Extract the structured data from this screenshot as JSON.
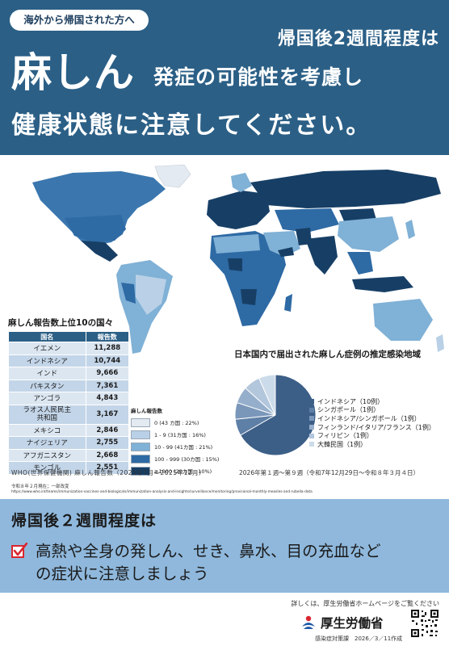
{
  "header": {
    "pill": "海外から帰国された方へ",
    "line1": "帰国後2週間程度は",
    "main": "麻しん",
    "sub": "発症の可能性を考慮し",
    "line3": "健康状態に注意してください。"
  },
  "top10": {
    "title": "麻しん報告数上位10の国々",
    "col_country": "国名",
    "col_count": "報告数",
    "rows": [
      {
        "country": "イエメン",
        "count": "11,288"
      },
      {
        "country": "インドネシア",
        "count": "10,744"
      },
      {
        "country": "インド",
        "count": "9,666"
      },
      {
        "country": "パキスタン",
        "count": "7,361"
      },
      {
        "country": "アンゴラ",
        "count": "4,843"
      },
      {
        "country_l1": "ラオス人民民主",
        "country_l2": "共和国",
        "count": "3,167"
      },
      {
        "country": "メキシコ",
        "count": "2,846"
      },
      {
        "country": "ナイジェリア",
        "count": "2,755"
      },
      {
        "country": "アフガニスタン",
        "count": "2,668"
      },
      {
        "country": "モンゴル",
        "count": "2,551"
      }
    ]
  },
  "legend": {
    "title": "麻しん報告数",
    "items": [
      {
        "label": "0 (43 カ国 : 22%)",
        "color": "#e4eaf1"
      },
      {
        "label": "1 - 9 (31カ国 : 16%)",
        "color": "#b9d0e6"
      },
      {
        "label": "10 - 99 (41カ国 : 21%)",
        "color": "#80b1d6"
      },
      {
        "label": "100 - 999 (30カ国 : 15%)",
        "color": "#2e6aa4"
      },
      {
        "label": "≧1000 (20カ国 : 10%)",
        "color": "#173f66"
      }
    ]
  },
  "japan": {
    "title": "日本国内で届出された麻しん症例の推定感染地域",
    "items": [
      {
        "label": "インドネシア（10例）",
        "cases": 10,
        "color": "#3c5f88"
      },
      {
        "label": "シンガポール（1例）",
        "cases": 1,
        "color": "#5e7fa6"
      },
      {
        "label": "インドネシア/シンガポール（1例）",
        "cases": 1,
        "color": "#7a97ba"
      },
      {
        "label": "フィンランド/イタリア/フランス（1例）",
        "cases": 1,
        "color": "#95aecb"
      },
      {
        "label": "フィリピン（1例）",
        "cases": 1,
        "color": "#b2c6dc"
      },
      {
        "label": "大韓民国（1例）",
        "cases": 1,
        "color": "#ccdbe9"
      }
    ]
  },
  "sources": {
    "who": "WHO(世界保健機関) 麻しん報告数（2025年7月～2025年12月）",
    "japan_period": "2026年第１週～第９週（令和7年12月29日～令和８年３月４日）",
    "note": "令和８年２月現在；一部改変",
    "url": "https://www.who.int/teams/immunization-vaccines-and-biologicals/immunization-analysis-and-insights/surveillance/monitoring/provisional-monthly-measles-and-rubella-data"
  },
  "bottom": {
    "title": "帰国後２週間程度は",
    "line1": "高熱や全身の発しん、せき、鼻水、目の充血など",
    "line2": "の症状に注意しましょう"
  },
  "footer": {
    "details": "詳しくは、厚生労働省ホームページをご覧ください",
    "logo": "厚生労働省",
    "dept": "感染症対策課　2026／3／11作成"
  },
  "colors": {
    "header_bg": "#2b5f86",
    "bottom_bg": "#8fb8dc",
    "check": "#d9262f"
  }
}
